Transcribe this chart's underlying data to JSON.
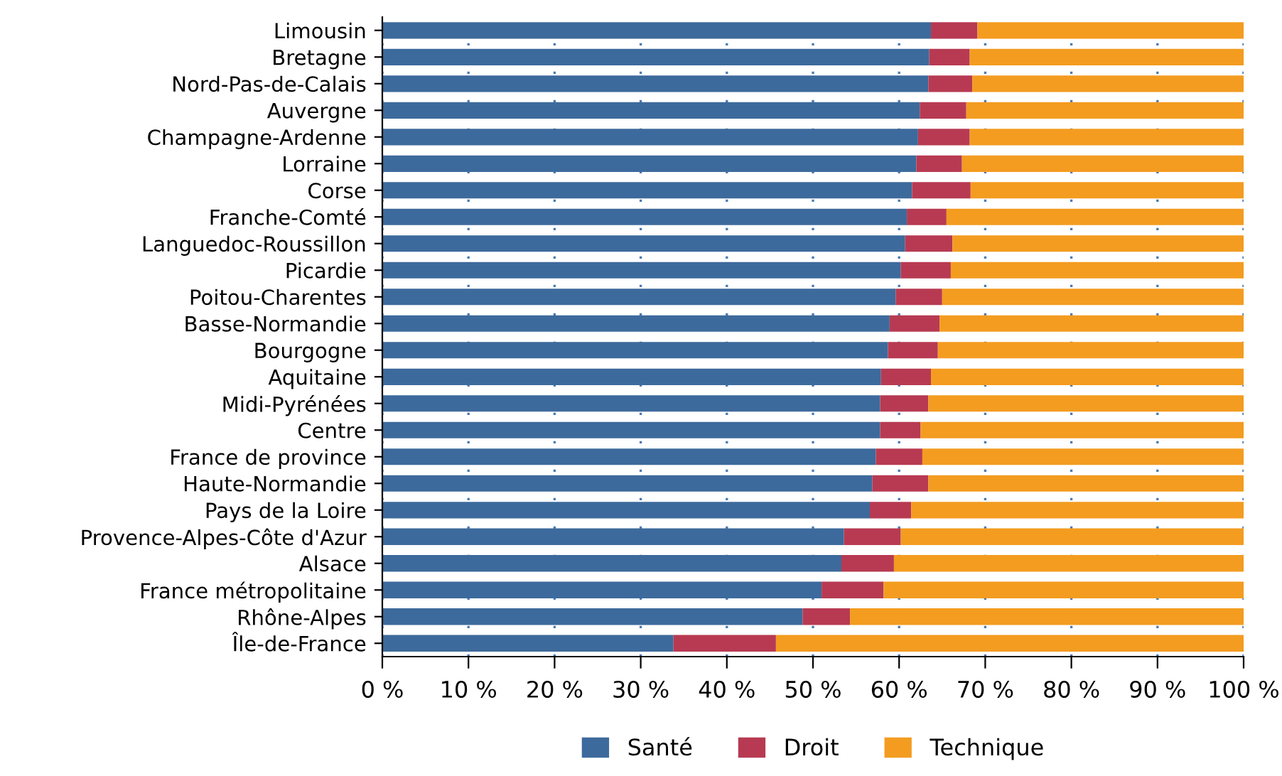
{
  "chart_data": {
    "type": "bar",
    "orientation": "horizontal",
    "stacked": true,
    "categories": [
      "Limousin",
      "Bretagne",
      "Nord-Pas-de-Calais",
      "Auvergne",
      "Champagne-Ardenne",
      "Lorraine",
      "Corse",
      "Franche-Comté",
      "Languedoc-Roussillon",
      "Picardie",
      "Poitou-Charentes",
      "Basse-Normandie",
      "Bourgogne",
      "Aquitaine",
      "Midi-Pyrénées",
      "Centre",
      "France de province",
      "Haute-Normandie",
      "Pays de la Loire",
      "Provence-Alpes-Côte d'Azur",
      "Alsace",
      "France métropolitaine",
      "Rhône-Alpes",
      "Île-de-France"
    ],
    "series": [
      {
        "name": "Santé",
        "color": "#3d6a9c",
        "values": [
          63.7,
          63.5,
          63.4,
          62.4,
          62.2,
          62.0,
          61.5,
          60.9,
          60.7,
          60.2,
          59.6,
          58.9,
          58.7,
          57.9,
          57.8,
          57.8,
          57.3,
          56.9,
          56.6,
          53.6,
          53.3,
          51.0,
          48.8,
          33.8
        ]
      },
      {
        "name": "Droit",
        "color": "#b73a52",
        "values": [
          5.4,
          4.7,
          5.1,
          5.4,
          6.0,
          5.3,
          6.8,
          4.6,
          5.5,
          5.8,
          5.4,
          5.8,
          5.8,
          5.8,
          5.6,
          4.7,
          5.4,
          6.5,
          4.8,
          6.6,
          6.1,
          7.2,
          5.5,
          11.9
        ]
      },
      {
        "name": "Technique",
        "color": "#f39c20",
        "values": [
          30.9,
          31.8,
          31.5,
          32.2,
          31.8,
          32.7,
          31.7,
          34.5,
          33.8,
          34.0,
          35.0,
          35.3,
          35.5,
          36.3,
          36.6,
          37.5,
          37.3,
          36.6,
          38.6,
          39.8,
          40.6,
          41.8,
          45.7,
          54.3
        ]
      }
    ],
    "xlim": [
      0,
      100
    ],
    "xticks": [
      {
        "value": 0,
        "label": "0 %"
      },
      {
        "value": 10,
        "label": "10 %"
      },
      {
        "value": 20,
        "label": "20 %"
      },
      {
        "value": 30,
        "label": "30 %"
      },
      {
        "value": 40,
        "label": "40 %"
      },
      {
        "value": 50,
        "label": "50 %"
      },
      {
        "value": 60,
        "label": "60 %"
      },
      {
        "value": 70,
        "label": "70 %"
      },
      {
        "value": 80,
        "label": "80 %"
      },
      {
        "value": 90,
        "label": "90 %"
      },
      {
        "value": 100,
        "label": "100 %"
      }
    ],
    "grid": "x",
    "legend": "bottom"
  }
}
